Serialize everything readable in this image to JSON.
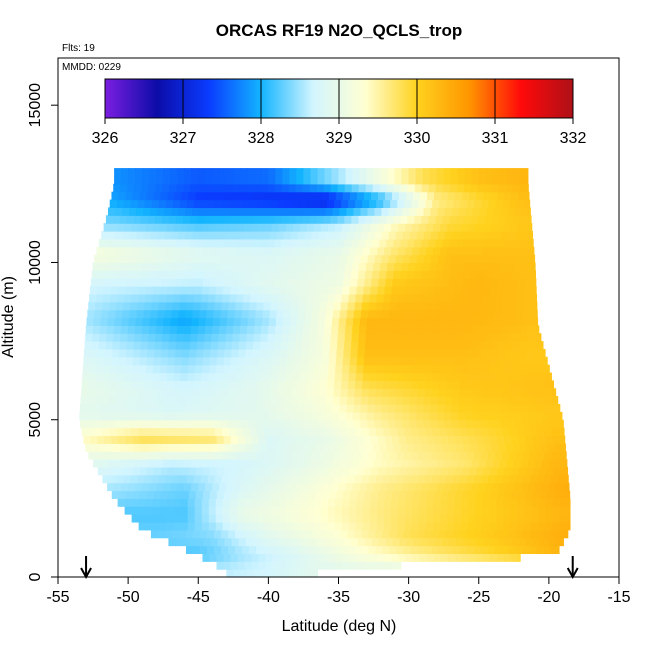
{
  "chart_data": {
    "type": "heatmap",
    "title": "ORCAS RF19 N2O_QCLS_trop",
    "flights_label": "Flts: 19",
    "date_label": "MMDD: 0229",
    "xlabel": "Latitude (deg N)",
    "ylabel": "Altitude (m)",
    "xlim": [
      -55,
      -15
    ],
    "ylim": [
      0,
      16500
    ],
    "x_ticks": [
      "-55",
      "-50",
      "-45",
      "-40",
      "-35",
      "-30",
      "-25",
      "-20",
      "-15"
    ],
    "y_ticks": [
      "0",
      "5000",
      "10000",
      "15000"
    ],
    "colorbar": {
      "min": 326,
      "max": 332,
      "tick_labels": [
        "326",
        "327",
        "328",
        "329",
        "330",
        "331",
        "332"
      ],
      "colors": [
        "#7b1ee0",
        "#0c0ca8",
        "#0a3cff",
        "#12b4ff",
        "#d2f5ff",
        "#ffffd2",
        "#ffd21e",
        "#ff9600",
        "#ff0a0a",
        "#ae1018"
      ]
    },
    "arrows_latitude": [
      -53,
      -18.3
    ],
    "profile_extent": [
      {
        "alt": 12500,
        "lat_min": -51,
        "lat_max": -21.5
      },
      {
        "alt": 11500,
        "lat_min": -51.5,
        "lat_max": -21.3
      },
      {
        "alt": 10000,
        "lat_min": -52.5,
        "lat_max": -21
      },
      {
        "alt": 8000,
        "lat_min": -53,
        "lat_max": -20.8
      },
      {
        "alt": 5000,
        "lat_min": -53.5,
        "lat_max": -19
      },
      {
        "alt": 4000,
        "lat_min": -53,
        "lat_max": -18.8
      },
      {
        "alt": 2500,
        "lat_min": -51,
        "lat_max": -18.5
      },
      {
        "alt": 1500,
        "lat_min": -49,
        "lat_max": -18.5
      },
      {
        "alt": 700,
        "lat_min": -45,
        "lat_max": -19.5
      },
      {
        "alt": 200,
        "lat_min": -43,
        "lat_max": -36.5
      }
    ],
    "layers": [
      {
        "alt": 12600,
        "values": [
          [
            -51,
            327.8
          ],
          [
            -45,
            327.5
          ],
          [
            -40,
            327.6
          ],
          [
            -35,
            328.5
          ],
          [
            -29,
            329.8
          ],
          [
            -25,
            330.2
          ],
          [
            -22,
            330.3
          ]
        ]
      },
      {
        "alt": 12000,
        "values": [
          [
            -51,
            327.9
          ],
          [
            -45,
            327.3
          ],
          [
            -40,
            327.2
          ],
          [
            -36,
            327.0
          ],
          [
            -32,
            328.0
          ],
          [
            -28,
            329.6
          ],
          [
            -22,
            330.2
          ]
        ]
      },
      {
        "alt": 11200,
        "values": [
          [
            -51,
            328.4
          ],
          [
            -45,
            328.2
          ],
          [
            -40,
            328.3
          ],
          [
            -35,
            328.6
          ],
          [
            -31,
            329.4
          ],
          [
            -27,
            329.9
          ],
          [
            -22,
            330.1
          ]
        ]
      },
      {
        "alt": 10300,
        "values": [
          [
            -52,
            329.2
          ],
          [
            -45,
            328.9
          ],
          [
            -40,
            328.8
          ],
          [
            -35,
            329.0
          ],
          [
            -31,
            329.7
          ],
          [
            -27,
            330.2
          ],
          [
            -22,
            330.2
          ]
        ]
      },
      {
        "alt": 9300,
        "values": [
          [
            -53,
            328.7
          ],
          [
            -45,
            328.6
          ],
          [
            -40,
            328.9
          ],
          [
            -35,
            329.1
          ],
          [
            -31,
            330.1
          ],
          [
            -25,
            330.3
          ],
          [
            -21,
            330.2
          ]
        ]
      },
      {
        "alt": 8200,
        "values": [
          [
            -53,
            328.5
          ],
          [
            -46,
            327.9
          ],
          [
            -40,
            328.5
          ],
          [
            -36,
            329.2
          ],
          [
            -33,
            330.3
          ],
          [
            -26,
            330.3
          ],
          [
            -21,
            330.2
          ]
        ]
      },
      {
        "alt": 7000,
        "values": [
          [
            -53,
            328.8
          ],
          [
            -46,
            328.4
          ],
          [
            -40,
            328.8
          ],
          [
            -36,
            329.2
          ],
          [
            -33,
            330.2
          ],
          [
            -26,
            330.2
          ],
          [
            -21,
            330.1
          ]
        ]
      },
      {
        "alt": 6000,
        "values": [
          [
            -53,
            329.0
          ],
          [
            -46,
            328.7
          ],
          [
            -41,
            328.9
          ],
          [
            -36,
            329.3
          ],
          [
            -33,
            329.8
          ],
          [
            -26,
            330.1
          ],
          [
            -20,
            330.2
          ]
        ]
      },
      {
        "alt": 5200,
        "values": [
          [
            -53,
            328.9
          ],
          [
            -47,
            328.8
          ],
          [
            -41,
            328.9
          ],
          [
            -36,
            329.2
          ],
          [
            -32,
            329.6
          ],
          [
            -26,
            330.0
          ],
          [
            -20,
            330.1
          ]
        ]
      },
      {
        "alt": 4400,
        "values": [
          [
            -53,
            329.4
          ],
          [
            -49,
            329.8
          ],
          [
            -44,
            329.7
          ],
          [
            -40,
            328.8
          ],
          [
            -36,
            329.0
          ],
          [
            -30,
            329.6
          ],
          [
            -24,
            329.9
          ],
          [
            -19.5,
            330.2
          ]
        ]
      },
      {
        "alt": 3600,
        "values": [
          [
            -53,
            328.9
          ],
          [
            -47,
            328.6
          ],
          [
            -42,
            328.7
          ],
          [
            -37,
            329.0
          ],
          [
            -32,
            329.4
          ],
          [
            -26,
            329.7
          ],
          [
            -19.5,
            330.3
          ]
        ]
      },
      {
        "alt": 2800,
        "values": [
          [
            -51,
            328.5
          ],
          [
            -46,
            328.3
          ],
          [
            -42,
            328.8
          ],
          [
            -37,
            329.2
          ],
          [
            -32,
            329.6
          ],
          [
            -25,
            330.0
          ],
          [
            -19,
            330.4
          ]
        ]
      },
      {
        "alt": 2000,
        "values": [
          [
            -50,
            328.2
          ],
          [
            -46,
            328.2
          ],
          [
            -42,
            329.0
          ],
          [
            -37,
            329.3
          ],
          [
            -31,
            329.7
          ],
          [
            -25,
            330.0
          ],
          [
            -19,
            330.3
          ]
        ]
      },
      {
        "alt": 1300,
        "values": [
          [
            -48,
            328.3
          ],
          [
            -44,
            328.4
          ],
          [
            -40,
            328.9
          ],
          [
            -35,
            329.3
          ],
          [
            -30,
            329.8
          ],
          [
            -24,
            330.1
          ],
          [
            -19,
            330.4
          ]
        ]
      },
      {
        "alt": 700,
        "values": [
          [
            -45,
            328.2
          ],
          [
            -42,
            328.5
          ],
          [
            -38,
            328.8
          ],
          [
            -34,
            329.2
          ],
          [
            -29,
            329.6
          ],
          [
            -23,
            330.0
          ],
          [
            -19.5,
            330.3
          ]
        ]
      },
      {
        "alt": 200,
        "values": [
          [
            -43,
            328.6
          ],
          [
            -40,
            328.7
          ],
          [
            -37,
            328.9
          ]
        ]
      }
    ]
  }
}
